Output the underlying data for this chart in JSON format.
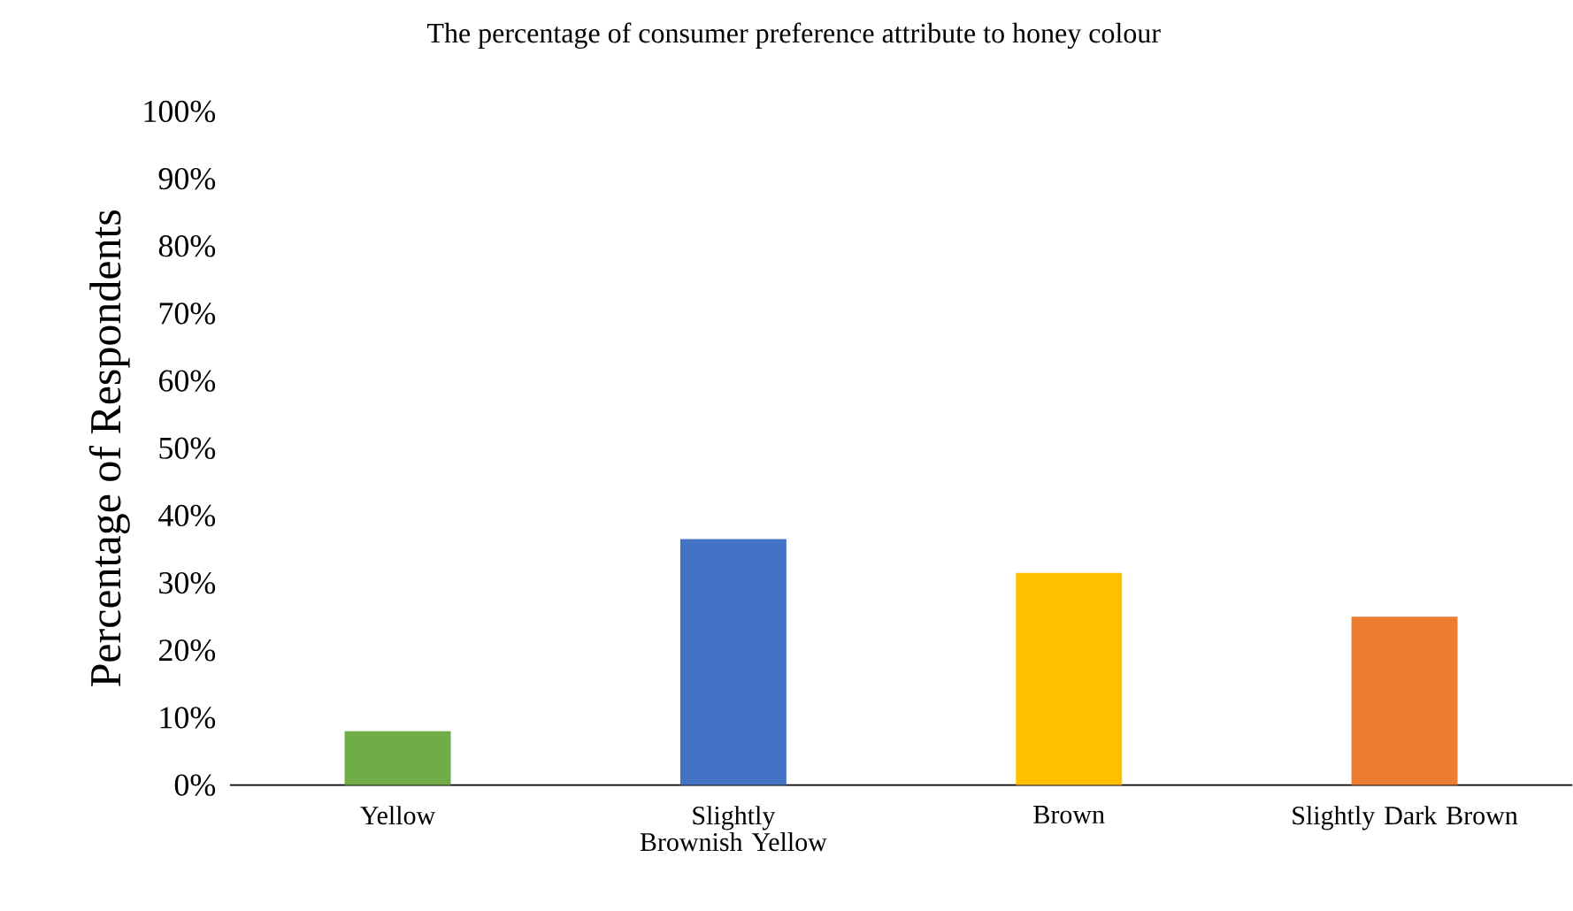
{
  "chart_data": {
    "type": "bar",
    "title": "The percentage of consumer preference attribute to honey colour",
    "ylabel": "Percentage of Respondents",
    "categories": [
      "Yellow",
      "Slightly Brownish Yellow",
      "Brown",
      "Slightly Dark Brown"
    ],
    "values": [
      8,
      36.5,
      31.5,
      25
    ],
    "colors": [
      "#70ad47",
      "#4472c4",
      "#ffc000",
      "#ed7d31"
    ],
    "ylim": [
      0,
      100
    ],
    "yticks": [
      {
        "value": 0,
        "label": "0%"
      },
      {
        "value": 10,
        "label": "10%"
      },
      {
        "value": 20,
        "label": "20%"
      },
      {
        "value": 30,
        "label": "30%"
      },
      {
        "value": 40,
        "label": "40%"
      },
      {
        "value": 50,
        "label": "50%"
      },
      {
        "value": 60,
        "label": "60%"
      },
      {
        "value": 70,
        "label": "70%"
      },
      {
        "value": 80,
        "label": "80%"
      },
      {
        "value": 90,
        "label": "90%"
      },
      {
        "value": 100,
        "label": "100%"
      }
    ]
  }
}
